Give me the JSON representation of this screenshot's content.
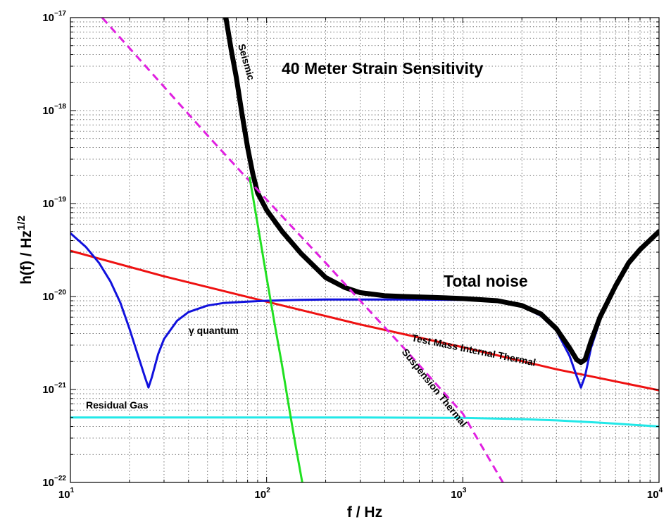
{
  "chart_data": {
    "type": "line",
    "title": "40 Meter Strain Sensitivity",
    "xlabel": "f / Hz",
    "ylabel": "h(f) / Hz^(1/2)",
    "x_scale": "log",
    "y_scale": "log",
    "xlim": [
      10,
      10000
    ],
    "ylim": [
      1e-22,
      1e-17
    ],
    "x_ticks": [
      {
        "value": 10,
        "base": "10",
        "exp": "1"
      },
      {
        "value": 100,
        "base": "10",
        "exp": "2"
      },
      {
        "value": 1000,
        "base": "10",
        "exp": "3"
      },
      {
        "value": 10000,
        "base": "10",
        "exp": "4"
      }
    ],
    "y_ticks": [
      {
        "value": 1e-22,
        "base": "10",
        "exp": "−22"
      },
      {
        "value": 1e-21,
        "base": "10",
        "exp": "−21"
      },
      {
        "value": 1e-20,
        "base": "10",
        "exp": "−20"
      },
      {
        "value": 1e-19,
        "base": "10",
        "exp": "−19"
      },
      {
        "value": 1e-18,
        "base": "10",
        "exp": "−18"
      },
      {
        "value": 1e-17,
        "base": "10",
        "exp": "−17"
      }
    ],
    "grid": true,
    "series": [
      {
        "name": "Total noise",
        "color": "#000000",
        "style": "solid-thick",
        "x": [
          62,
          66,
          70,
          75,
          80,
          85,
          90,
          100,
          120,
          150,
          200,
          250,
          300,
          400,
          500,
          700,
          1000,
          1500,
          2000,
          2500,
          3000,
          3500,
          3800,
          4000,
          4200,
          4500,
          5000,
          6000,
          7000,
          8000,
          10000
        ],
        "y": [
          1e-17,
          4.5e-18,
          2.3e-18,
          9e-19,
          4e-19,
          2.1e-19,
          1.3e-19,
          8.5e-20,
          5e-20,
          2.9e-20,
          1.6e-20,
          1.25e-20,
          1.1e-20,
          1.02e-20,
          1e-20,
          9.8e-21,
          9.5e-21,
          9e-21,
          8e-21,
          6.5e-21,
          4.5e-21,
          2.8e-21,
          2.1e-21,
          1.95e-21,
          2.1e-21,
          3.3e-21,
          6e-21,
          1.3e-20,
          2.3e-20,
          3.2e-20,
          5e-20
        ]
      },
      {
        "name": "Seismic",
        "color": "#20e020",
        "style": "solid",
        "x": [
          82,
          90,
          100,
          110,
          120,
          130,
          140,
          152
        ],
        "y": [
          1.9e-19,
          6e-20,
          1.6e-20,
          5e-21,
          1.8e-21,
          6.5e-22,
          2.6e-22,
          1e-22
        ]
      },
      {
        "name": "Suspension Thermal",
        "color": "#e020e0",
        "style": "dashed",
        "x": [
          14.5,
          20,
          30,
          50,
          100,
          200,
          300,
          500,
          1000,
          1600
        ],
        "y": [
          1e-17,
          4.7e-18,
          1.8e-18,
          5.4e-19,
          1.1e-19,
          2.3e-20,
          9e-21,
          2.8e-21,
          5.5e-22,
          1e-22
        ]
      },
      {
        "name": "Test Mass Internal Thermal",
        "color": "#ee1111",
        "style": "solid",
        "x": [
          10,
          30,
          100,
          300,
          1000,
          3000,
          10000
        ],
        "y": [
          3.1e-20,
          1.65e-20,
          8.8e-21,
          5e-21,
          2.85e-21,
          1.65e-21,
          9.8e-22
        ]
      },
      {
        "name": "γ quantum",
        "color": "#1111dd",
        "style": "solid",
        "x": [
          10,
          12,
          14,
          16,
          18,
          20,
          22,
          24,
          25,
          26,
          28,
          30,
          35,
          40,
          50,
          60,
          80,
          100,
          150,
          200,
          300,
          500,
          1000,
          1500,
          2000,
          2500,
          3000,
          3500,
          3800,
          4000,
          4200,
          4500,
          5000
        ],
        "y": [
          4.8e-20,
          3.4e-20,
          2.3e-20,
          1.45e-20,
          8.5e-21,
          4.5e-21,
          2.4e-21,
          1.35e-21,
          1.05e-21,
          1.35e-21,
          2.4e-21,
          3.5e-21,
          5.5e-21,
          6.8e-21,
          8e-21,
          8.5e-21,
          8.8e-21,
          9e-21,
          9.2e-21,
          9.3e-21,
          9.3e-21,
          9.3e-21,
          9.2e-21,
          8.8e-21,
          7.8e-21,
          6.2e-21,
          4.3e-21,
          2.3e-21,
          1.4e-21,
          1.05e-21,
          1.4e-21,
          2.8e-21,
          5.5e-21
        ]
      },
      {
        "name": "Residual Gas",
        "color": "#22e8e8",
        "style": "solid",
        "x": [
          10,
          30,
          100,
          300,
          1000,
          2000,
          3000,
          5000,
          7000,
          10000
        ],
        "y": [
          5e-22,
          5e-22,
          5e-22,
          5e-22,
          4.95e-22,
          4.8e-22,
          4.65e-22,
          4.4e-22,
          4.2e-22,
          4e-22
        ]
      }
    ],
    "annotations": [
      {
        "text": "40 Meter Strain Sensitivity"
      },
      {
        "text": "Total noise"
      },
      {
        "text": "Seismic"
      },
      {
        "text": "Suspension Thermal"
      },
      {
        "text": "Test Mass Internal Thermal"
      },
      {
        "text": "γ quantum"
      },
      {
        "text": "Residual Gas"
      }
    ]
  }
}
